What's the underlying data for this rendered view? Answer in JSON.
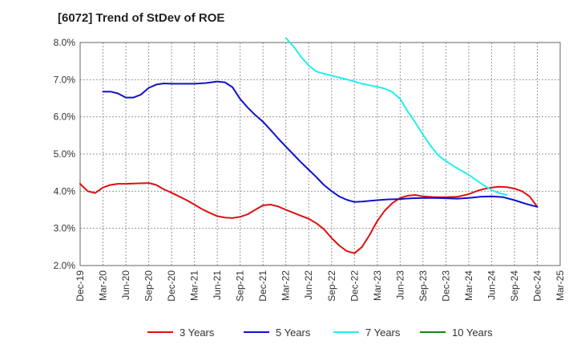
{
  "chart_data": {
    "type": "line",
    "title": "[6072]  Trend of StDev of ROE",
    "xlabel": "",
    "ylabel": "",
    "ylim": [
      2.0,
      8.0
    ],
    "yticks": [
      "2.0%",
      "3.0%",
      "4.0%",
      "5.0%",
      "6.0%",
      "7.0%",
      "8.0%"
    ],
    "ytick_values": [
      2,
      3,
      4,
      5,
      6,
      7,
      8
    ],
    "x_categories": [
      "Dec-19",
      "Mar-20",
      "Jun-20",
      "Sep-20",
      "Dec-20",
      "Mar-21",
      "Jun-21",
      "Sep-21",
      "Dec-21",
      "Mar-22",
      "Jun-22",
      "Sep-22",
      "Dec-22",
      "Mar-23",
      "Jun-23",
      "Sep-23",
      "Dec-23",
      "Mar-24",
      "Jun-24",
      "Sep-24",
      "Dec-24",
      "Mar-25"
    ],
    "grid": true,
    "legend_position": "bottom",
    "series": [
      {
        "name": "3 Years",
        "color": "#dd1111",
        "points": [
          [
            0,
            4.2
          ],
          [
            0.33,
            4.0
          ],
          [
            0.66,
            3.95
          ],
          [
            1,
            4.1
          ],
          [
            1.33,
            4.17
          ],
          [
            1.66,
            4.2
          ],
          [
            2,
            4.2
          ],
          [
            2.5,
            4.21
          ],
          [
            3,
            4.22
          ],
          [
            3.33,
            4.17
          ],
          [
            3.66,
            4.05
          ],
          [
            4,
            3.96
          ],
          [
            4.33,
            3.86
          ],
          [
            4.66,
            3.76
          ],
          [
            5,
            3.64
          ],
          [
            5.33,
            3.52
          ],
          [
            5.66,
            3.42
          ],
          [
            6,
            3.33
          ],
          [
            6.33,
            3.29
          ],
          [
            6.66,
            3.28
          ],
          [
            7,
            3.31
          ],
          [
            7.33,
            3.38
          ],
          [
            7.66,
            3.5
          ],
          [
            8,
            3.62
          ],
          [
            8.33,
            3.64
          ],
          [
            8.66,
            3.59
          ],
          [
            9,
            3.5
          ],
          [
            9.33,
            3.42
          ],
          [
            9.66,
            3.34
          ],
          [
            10,
            3.26
          ],
          [
            10.33,
            3.14
          ],
          [
            10.66,
            2.98
          ],
          [
            11,
            2.74
          ],
          [
            11.33,
            2.54
          ],
          [
            11.66,
            2.39
          ],
          [
            12,
            2.33
          ],
          [
            12.33,
            2.5
          ],
          [
            12.66,
            2.82
          ],
          [
            13,
            3.2
          ],
          [
            13.33,
            3.48
          ],
          [
            13.66,
            3.68
          ],
          [
            14,
            3.82
          ],
          [
            14.33,
            3.88
          ],
          [
            14.66,
            3.9
          ],
          [
            15,
            3.86
          ],
          [
            15.5,
            3.84
          ],
          [
            16,
            3.84
          ],
          [
            16.5,
            3.85
          ],
          [
            17,
            3.92
          ],
          [
            17.33,
            4.0
          ],
          [
            17.66,
            4.06
          ],
          [
            18,
            4.1
          ],
          [
            18.33,
            4.12
          ],
          [
            18.66,
            4.11
          ],
          [
            19,
            4.07
          ],
          [
            19.33,
            4.0
          ],
          [
            19.66,
            3.86
          ],
          [
            20,
            3.58
          ]
        ]
      },
      {
        "name": "5 Years",
        "color": "#1111cc",
        "points": [
          [
            1,
            6.68
          ],
          [
            1.33,
            6.68
          ],
          [
            1.66,
            6.63
          ],
          [
            2,
            6.52
          ],
          [
            2.33,
            6.52
          ],
          [
            2.66,
            6.6
          ],
          [
            3,
            6.78
          ],
          [
            3.33,
            6.87
          ],
          [
            3.66,
            6.9
          ],
          [
            4,
            6.89
          ],
          [
            4.5,
            6.89
          ],
          [
            5,
            6.89
          ],
          [
            5.5,
            6.91
          ],
          [
            6,
            6.95
          ],
          [
            6.33,
            6.93
          ],
          [
            6.66,
            6.8
          ],
          [
            7,
            6.48
          ],
          [
            7.33,
            6.25
          ],
          [
            7.66,
            6.05
          ],
          [
            8,
            5.87
          ],
          [
            8.33,
            5.65
          ],
          [
            8.66,
            5.42
          ],
          [
            9,
            5.2
          ],
          [
            9.33,
            4.99
          ],
          [
            9.66,
            4.78
          ],
          [
            10,
            4.58
          ],
          [
            10.33,
            4.38
          ],
          [
            10.66,
            4.17
          ],
          [
            11,
            4.0
          ],
          [
            11.33,
            3.86
          ],
          [
            11.66,
            3.77
          ],
          [
            12,
            3.71
          ],
          [
            12.33,
            3.72
          ],
          [
            12.66,
            3.74
          ],
          [
            13,
            3.76
          ],
          [
            13.5,
            3.78
          ],
          [
            14,
            3.79
          ],
          [
            14.5,
            3.81
          ],
          [
            15,
            3.82
          ],
          [
            15.5,
            3.82
          ],
          [
            16,
            3.81
          ],
          [
            16.5,
            3.8
          ],
          [
            17,
            3.82
          ],
          [
            17.5,
            3.85
          ],
          [
            18,
            3.86
          ],
          [
            18.5,
            3.84
          ],
          [
            19,
            3.76
          ],
          [
            19.5,
            3.66
          ],
          [
            20,
            3.58
          ]
        ]
      },
      {
        "name": "7 Years",
        "color": "#22eeee",
        "points": [
          [
            9,
            8.12
          ],
          [
            9.33,
            7.9
          ],
          [
            9.66,
            7.62
          ],
          [
            10,
            7.38
          ],
          [
            10.33,
            7.22
          ],
          [
            10.66,
            7.16
          ],
          [
            11,
            7.11
          ],
          [
            11.33,
            7.06
          ],
          [
            11.66,
            7.01
          ],
          [
            12,
            6.95
          ],
          [
            12.33,
            6.89
          ],
          [
            12.66,
            6.85
          ],
          [
            13,
            6.81
          ],
          [
            13.33,
            6.76
          ],
          [
            13.66,
            6.67
          ],
          [
            14,
            6.48
          ],
          [
            14.33,
            6.15
          ],
          [
            14.66,
            5.85
          ],
          [
            15,
            5.52
          ],
          [
            15.33,
            5.22
          ],
          [
            15.66,
            4.97
          ],
          [
            16,
            4.81
          ],
          [
            16.33,
            4.68
          ],
          [
            16.66,
            4.56
          ],
          [
            17,
            4.44
          ],
          [
            17.33,
            4.3
          ],
          [
            17.66,
            4.16
          ],
          [
            18,
            4.03
          ],
          [
            18.33,
            3.95
          ],
          [
            18.66,
            3.9
          ]
        ]
      },
      {
        "name": "10 Years",
        "color": "#118811",
        "points": []
      }
    ]
  }
}
